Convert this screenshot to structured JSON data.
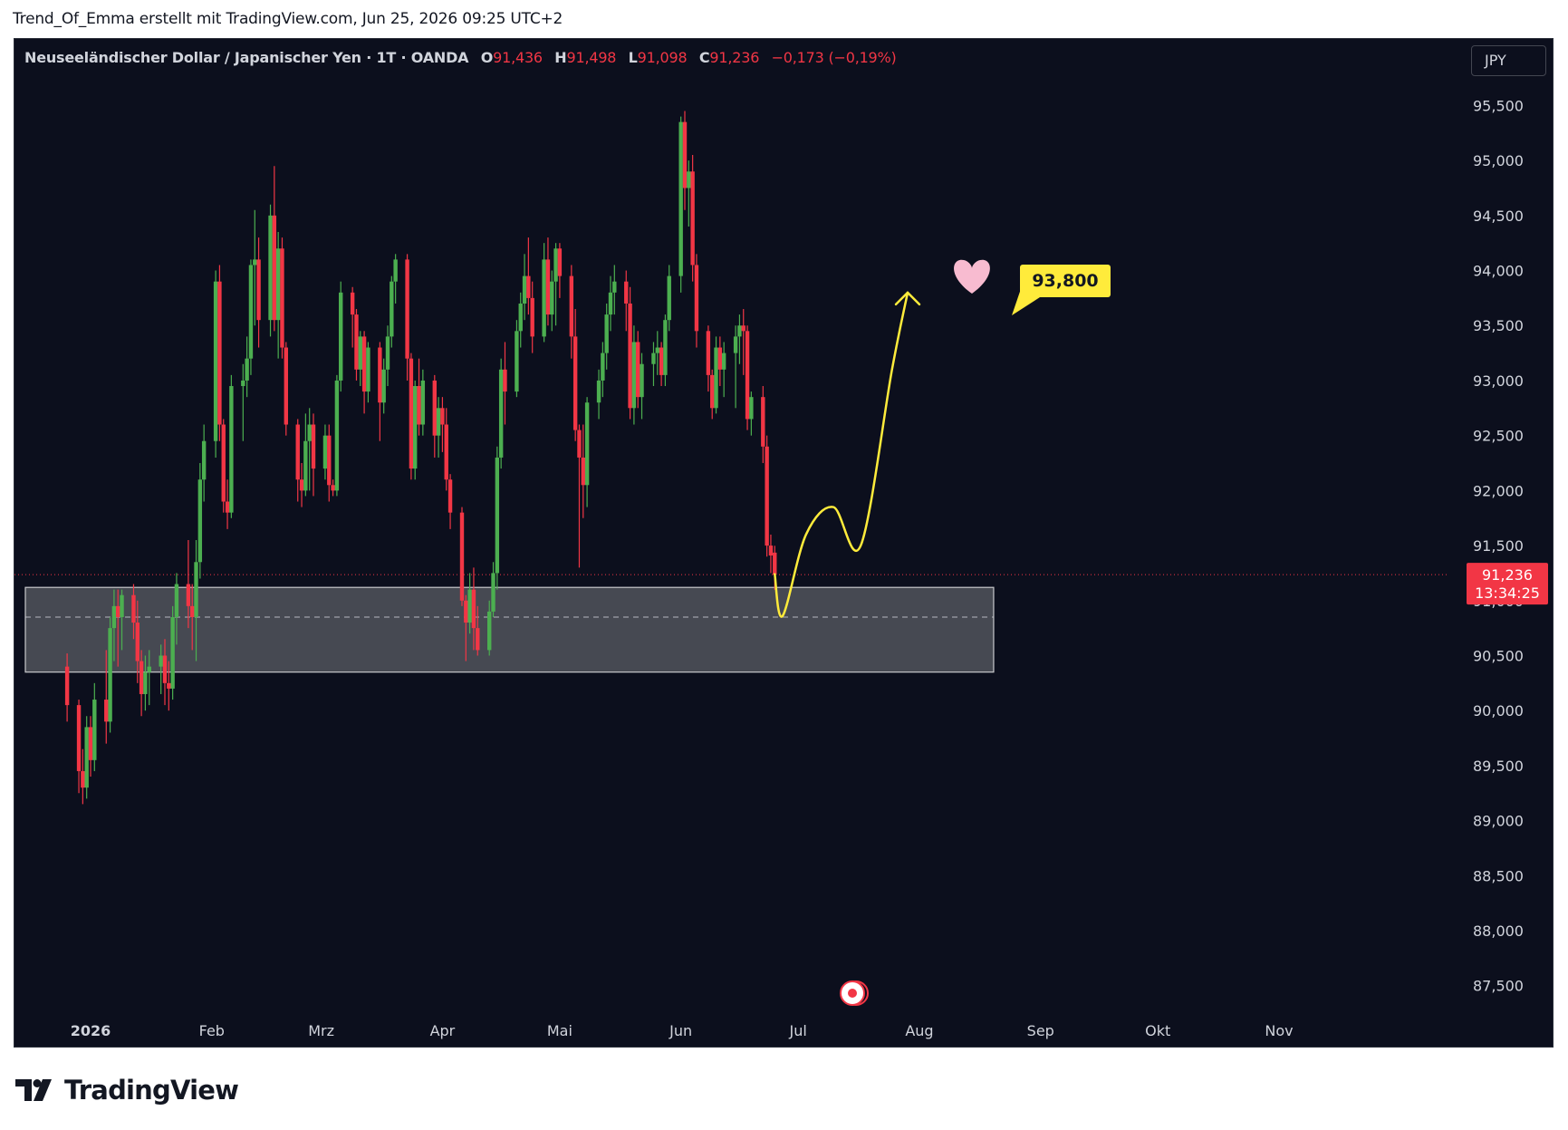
{
  "header": {
    "text": "Trend_Of_Emma erstellt mit TradingView.com, Jun 25, 2026 09:25 UTC+2"
  },
  "legend": {
    "symbol": "Neuseeländischer Dollar / Japanischer Yen · 1T · OANDA",
    "o_label": "O",
    "o_value": "91,436",
    "h_label": "H",
    "h_value": "91,498",
    "l_label": "L",
    "l_value": "91,098",
    "c_label": "C",
    "c_value": "91,236",
    "change": "−0,173 (−0,19%)"
  },
  "currency_button": "JPY",
  "price_tag": {
    "price": "91,236",
    "countdown": "13:34:25"
  },
  "target_label": "93,800",
  "brand": "TradingView",
  "colors": {
    "background": "#0c0f1d",
    "up": "#4caf50",
    "down": "#f23645",
    "zone_fill": "#4a4d55",
    "projection": "#ffeb3b",
    "heart": "#f8bbd0",
    "axis_text": "#d1d4dc"
  },
  "chart_data": {
    "type": "candlestick",
    "y_axis": {
      "min": 87.3,
      "max": 95.8,
      "ticks": [
        "87,500",
        "88,000",
        "88,500",
        "89,000",
        "89,500",
        "90,000",
        "90,500",
        "91,000",
        "91,500",
        "92,000",
        "92,500",
        "93,000",
        "93,500",
        "94,000",
        "94,500",
        "95,000",
        "95,500"
      ],
      "tick_values": [
        87.5,
        88,
        88.5,
        89,
        89.5,
        90,
        90.5,
        91,
        91.5,
        92,
        92.5,
        93,
        93.5,
        94,
        94.5,
        95,
        95.5
      ]
    },
    "x_axis": {
      "labels": [
        "2026",
        "Feb",
        "Mrz",
        "Apr",
        "Mai",
        "Jun",
        "Jul",
        "Aug",
        "Sep",
        "Okt",
        "Nov"
      ],
      "label_dates": [
        "2026-01-01",
        "2026-02-01",
        "2026-03-01",
        "2026-04-01",
        "2026-05-01",
        "2026-06-01",
        "2026-07-01",
        "2026-08-01",
        "2026-09-01",
        "2026-10-01",
        "2026-11-01"
      ]
    },
    "support_zone": {
      "top": 91.12,
      "bottom": 90.35,
      "mid": 90.85,
      "end_date": "2026-08-20"
    },
    "last_price": 91.236,
    "target": 93.8,
    "projection_path": [
      {
        "date": "2026-06-25",
        "price": 91.24
      },
      {
        "date": "2026-06-27",
        "price": 90.86
      },
      {
        "date": "2026-07-03",
        "price": 91.6
      },
      {
        "date": "2026-07-10",
        "price": 91.85
      },
      {
        "date": "2026-07-17",
        "price": 91.5
      },
      {
        "date": "2026-07-25",
        "price": 93.1
      },
      {
        "date": "2026-07-29",
        "price": 93.8
      }
    ],
    "candles": [
      [
        "2025-12-26",
        90.4,
        90.52,
        89.9,
        90.05
      ],
      [
        "2025-12-29",
        90.05,
        90.1,
        89.25,
        89.45
      ],
      [
        "2025-12-30",
        89.45,
        89.65,
        89.15,
        89.3
      ],
      [
        "2025-12-31",
        89.3,
        89.95,
        89.2,
        89.85
      ],
      [
        "2026-01-01",
        89.85,
        89.95,
        89.4,
        89.55
      ],
      [
        "2026-01-02",
        89.55,
        90.25,
        89.45,
        90.1
      ],
      [
        "2026-01-05",
        90.1,
        90.55,
        89.7,
        89.9
      ],
      [
        "2026-01-06",
        89.9,
        90.85,
        89.8,
        90.75
      ],
      [
        "2026-01-07",
        90.75,
        91.1,
        90.45,
        90.95
      ],
      [
        "2026-01-08",
        90.95,
        91.1,
        90.4,
        90.85
      ],
      [
        "2026-01-09",
        90.85,
        91.1,
        90.55,
        91.05
      ],
      [
        "2026-01-12",
        91.05,
        91.15,
        90.65,
        90.8
      ],
      [
        "2026-01-13",
        90.8,
        91.0,
        90.25,
        90.45
      ],
      [
        "2026-01-14",
        90.45,
        90.55,
        89.95,
        90.15
      ],
      [
        "2026-01-15",
        90.15,
        90.5,
        90.0,
        90.35
      ],
      [
        "2026-01-16",
        90.35,
        90.55,
        90.05,
        90.4
      ],
      [
        "2026-01-19",
        90.4,
        90.6,
        90.15,
        90.5
      ],
      [
        "2026-01-20",
        90.5,
        90.65,
        90.05,
        90.25
      ],
      [
        "2026-01-21",
        90.25,
        90.45,
        90.0,
        90.2
      ],
      [
        "2026-01-22",
        90.2,
        90.95,
        90.1,
        90.85
      ],
      [
        "2026-01-23",
        90.85,
        91.25,
        90.6,
        91.15
      ],
      [
        "2026-01-26",
        91.15,
        91.55,
        90.75,
        90.95
      ],
      [
        "2026-01-27",
        90.95,
        91.15,
        90.55,
        90.85
      ],
      [
        "2026-01-28",
        90.85,
        91.55,
        90.45,
        91.35
      ],
      [
        "2026-01-29",
        91.35,
        92.25,
        91.2,
        92.1
      ],
      [
        "2026-01-30",
        92.1,
        92.6,
        91.9,
        92.45
      ],
      [
        "2026-02-02",
        92.45,
        94.0,
        92.3,
        93.9
      ],
      [
        "2026-02-03",
        93.9,
        94.05,
        92.45,
        92.6
      ],
      [
        "2026-02-04",
        92.6,
        92.65,
        91.8,
        91.9
      ],
      [
        "2026-02-05",
        91.9,
        92.1,
        91.65,
        91.8
      ],
      [
        "2026-02-06",
        91.8,
        93.05,
        91.75,
        92.95
      ],
      [
        "2026-02-09",
        92.95,
        93.15,
        92.45,
        93.0
      ],
      [
        "2026-02-10",
        93.0,
        93.4,
        92.85,
        93.2
      ],
      [
        "2026-02-11",
        93.2,
        94.1,
        93.05,
        94.05
      ],
      [
        "2026-02-12",
        94.05,
        94.55,
        93.5,
        94.1
      ],
      [
        "2026-02-13",
        94.1,
        94.3,
        93.3,
        93.55
      ],
      [
        "2026-02-16",
        93.55,
        94.6,
        93.4,
        94.5
      ],
      [
        "2026-02-17",
        94.5,
        94.95,
        93.45,
        93.55
      ],
      [
        "2026-02-18",
        93.55,
        94.35,
        93.2,
        94.2
      ],
      [
        "2026-02-19",
        94.2,
        94.3,
        93.2,
        93.3
      ],
      [
        "2026-02-20",
        93.3,
        93.35,
        92.5,
        92.6
      ],
      [
        "2026-02-23",
        92.6,
        92.65,
        91.9,
        92.1
      ],
      [
        "2026-02-24",
        92.1,
        92.25,
        91.85,
        92.0
      ],
      [
        "2026-02-25",
        92.0,
        92.7,
        91.95,
        92.45
      ],
      [
        "2026-02-26",
        92.45,
        92.75,
        92.0,
        92.6
      ],
      [
        "2026-02-27",
        92.6,
        92.7,
        91.95,
        92.2
      ],
      [
        "2026-03-02",
        92.2,
        92.6,
        92.1,
        92.5
      ],
      [
        "2026-03-03",
        92.5,
        92.6,
        91.9,
        92.05
      ],
      [
        "2026-03-04",
        92.05,
        92.1,
        91.95,
        92.0
      ],
      [
        "2026-03-05",
        92.0,
        93.05,
        91.95,
        93.0
      ],
      [
        "2026-03-06",
        93.0,
        93.9,
        92.9,
        93.8
      ],
      [
        "2026-03-09",
        93.8,
        93.85,
        93.3,
        93.6
      ],
      [
        "2026-03-10",
        93.6,
        93.65,
        93.0,
        93.1
      ],
      [
        "2026-03-11",
        93.1,
        93.45,
        92.95,
        93.4
      ],
      [
        "2026-03-12",
        93.4,
        93.45,
        92.7,
        92.9
      ],
      [
        "2026-03-13",
        92.9,
        93.35,
        92.8,
        93.3
      ],
      [
        "2026-03-16",
        93.3,
        93.35,
        92.45,
        92.8
      ],
      [
        "2026-03-17",
        92.8,
        93.2,
        92.7,
        93.1
      ],
      [
        "2026-03-18",
        93.1,
        93.5,
        92.95,
        93.4
      ],
      [
        "2026-03-19",
        93.4,
        93.95,
        93.3,
        93.9
      ],
      [
        "2026-03-20",
        93.9,
        94.15,
        93.7,
        94.1
      ],
      [
        "2026-03-23",
        94.1,
        94.15,
        93.0,
        93.2
      ],
      [
        "2026-03-24",
        93.2,
        93.25,
        92.1,
        92.2
      ],
      [
        "2026-03-25",
        92.2,
        93.0,
        92.1,
        92.95
      ],
      [
        "2026-03-26",
        92.95,
        93.2,
        92.5,
        92.6
      ],
      [
        "2026-03-27",
        92.6,
        93.1,
        92.5,
        93.0
      ],
      [
        "2026-03-30",
        93.0,
        93.05,
        92.3,
        92.5
      ],
      [
        "2026-03-31",
        92.5,
        92.85,
        92.3,
        92.75
      ],
      [
        "2026-04-01",
        92.75,
        92.85,
        92.35,
        92.6
      ],
      [
        "2026-04-02",
        92.6,
        92.75,
        92.0,
        92.1
      ],
      [
        "2026-04-03",
        92.1,
        92.15,
        91.65,
        91.8
      ],
      [
        "2026-04-06",
        91.8,
        91.85,
        90.95,
        91.0
      ],
      [
        "2026-04-07",
        91.0,
        91.05,
        90.45,
        90.8
      ],
      [
        "2026-04-08",
        90.8,
        91.25,
        90.7,
        91.1
      ],
      [
        "2026-04-09",
        91.1,
        91.3,
        90.55,
        90.75
      ],
      [
        "2026-04-10",
        90.75,
        90.95,
        90.5,
        90.55
      ],
      [
        "2026-04-13",
        90.55,
        91.0,
        90.5,
        90.9
      ],
      [
        "2026-04-14",
        90.9,
        91.35,
        90.85,
        91.25
      ],
      [
        "2026-04-15",
        91.25,
        92.4,
        91.1,
        92.3
      ],
      [
        "2026-04-16",
        92.3,
        93.2,
        92.2,
        93.1
      ],
      [
        "2026-04-17",
        93.1,
        93.35,
        92.6,
        92.9
      ],
      [
        "2026-04-20",
        92.9,
        93.55,
        92.85,
        93.45
      ],
      [
        "2026-04-21",
        93.45,
        93.8,
        93.3,
        93.7
      ],
      [
        "2026-04-22",
        93.7,
        94.15,
        93.55,
        93.95
      ],
      [
        "2026-04-23",
        93.95,
        94.3,
        93.6,
        93.75
      ],
      [
        "2026-04-24",
        93.75,
        93.9,
        93.25,
        93.4
      ],
      [
        "2026-04-27",
        93.4,
        94.25,
        93.35,
        94.1
      ],
      [
        "2026-04-28",
        94.1,
        94.3,
        93.5,
        93.6
      ],
      [
        "2026-04-29",
        93.6,
        94.0,
        93.45,
        93.9
      ],
      [
        "2026-04-30",
        93.9,
        94.25,
        93.5,
        94.2
      ],
      [
        "2026-05-01",
        94.2,
        94.25,
        93.75,
        93.95
      ],
      [
        "2026-05-04",
        93.95,
        94.05,
        93.2,
        93.4
      ],
      [
        "2026-05-05",
        93.4,
        93.65,
        92.45,
        92.55
      ],
      [
        "2026-05-06",
        92.55,
        92.6,
        91.3,
        92.3
      ],
      [
        "2026-05-07",
        92.3,
        92.6,
        91.75,
        92.05
      ],
      [
        "2026-05-08",
        92.05,
        92.85,
        91.85,
        92.8
      ],
      [
        "2026-05-11",
        92.8,
        93.1,
        92.65,
        93.0
      ],
      [
        "2026-05-12",
        93.0,
        93.35,
        92.85,
        93.25
      ],
      [
        "2026-05-13",
        93.25,
        93.7,
        93.1,
        93.6
      ],
      [
        "2026-05-14",
        93.6,
        93.95,
        93.45,
        93.8
      ],
      [
        "2026-05-15",
        93.8,
        94.05,
        93.6,
        93.9
      ],
      [
        "2026-05-18",
        93.9,
        94.0,
        93.45,
        93.7
      ],
      [
        "2026-05-19",
        93.7,
        93.85,
        92.65,
        92.75
      ],
      [
        "2026-05-20",
        92.75,
        93.5,
        92.6,
        93.35
      ],
      [
        "2026-05-21",
        93.35,
        93.45,
        92.75,
        92.85
      ],
      [
        "2026-05-22",
        92.85,
        93.25,
        92.65,
        93.15
      ],
      [
        "2026-05-25",
        93.15,
        93.35,
        92.95,
        93.25
      ],
      [
        "2026-05-26",
        93.25,
        93.45,
        93.05,
        93.3
      ],
      [
        "2026-05-27",
        93.3,
        93.35,
        92.95,
        93.05
      ],
      [
        "2026-05-28",
        93.05,
        93.6,
        92.95,
        93.55
      ],
      [
        "2026-05-29",
        93.55,
        94.05,
        93.45,
        93.95
      ],
      [
        "2026-06-01",
        93.95,
        95.4,
        93.8,
        95.35
      ],
      [
        "2026-06-02",
        95.35,
        95.45,
        94.55,
        94.75
      ],
      [
        "2026-06-03",
        94.75,
        95.0,
        94.4,
        94.9
      ],
      [
        "2026-06-04",
        94.9,
        95.05,
        93.9,
        94.05
      ],
      [
        "2026-06-05",
        94.05,
        94.15,
        93.3,
        93.45
      ],
      [
        "2026-06-08",
        93.45,
        93.5,
        92.9,
        93.05
      ],
      [
        "2026-06-09",
        93.05,
        93.1,
        92.65,
        92.75
      ],
      [
        "2026-06-10",
        92.75,
        93.4,
        92.7,
        93.3
      ],
      [
        "2026-06-11",
        93.3,
        93.4,
        92.95,
        93.1
      ],
      [
        "2026-06-12",
        93.1,
        93.35,
        92.85,
        93.25
      ],
      [
        "2026-06-15",
        93.25,
        93.5,
        92.75,
        93.4
      ],
      [
        "2026-06-16",
        93.4,
        93.6,
        93.15,
        93.5
      ],
      [
        "2026-06-17",
        93.5,
        93.65,
        93.05,
        93.45
      ],
      [
        "2026-06-18",
        93.45,
        93.5,
        92.55,
        92.65
      ],
      [
        "2026-06-19",
        92.65,
        92.9,
        92.5,
        92.85
      ],
      [
        "2026-06-22",
        92.85,
        92.95,
        92.25,
        92.4
      ],
      [
        "2026-06-23",
        92.4,
        92.5,
        91.4,
        91.5
      ],
      [
        "2026-06-24",
        91.5,
        91.6,
        91.25,
        91.41
      ],
      [
        "2026-06-25",
        91.436,
        91.498,
        91.098,
        91.236
      ]
    ]
  }
}
